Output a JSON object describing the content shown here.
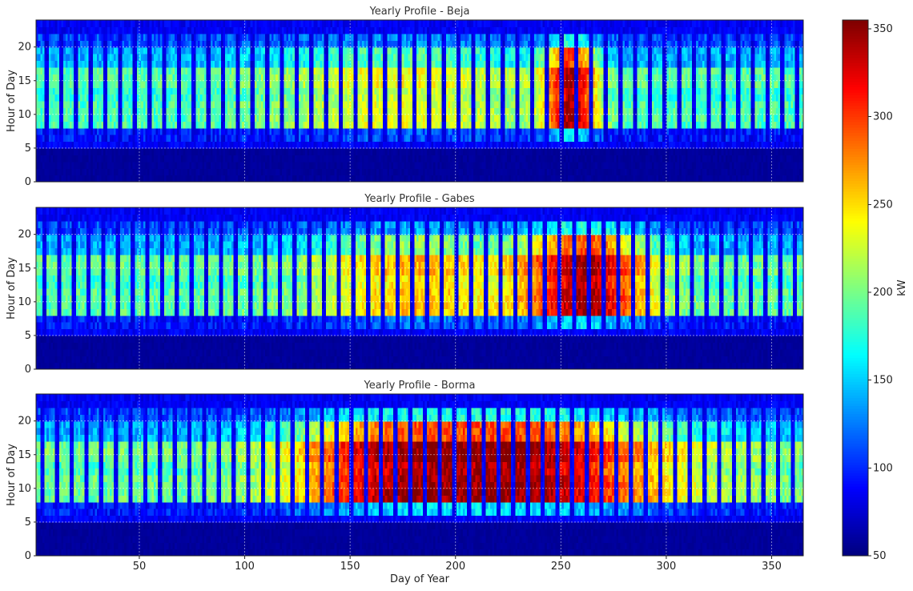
{
  "chart_data": {
    "type": "heatmap",
    "colormap": "jet",
    "colorbar": {
      "label": "kW",
      "range": [
        50,
        355
      ],
      "ticks": [
        50,
        100,
        150,
        200,
        250,
        300,
        350
      ]
    },
    "x": {
      "label": "Day of Year",
      "range": [
        1,
        365
      ],
      "ticks": [
        50,
        100,
        150,
        200,
        250,
        300,
        350
      ]
    },
    "y": {
      "label": "Hour of Day",
      "range": [
        0,
        24
      ],
      "ticks": [
        0,
        5,
        10,
        15,
        20
      ]
    },
    "grid": true,
    "panels": [
      {
        "title": "Yearly Profile - Beja",
        "weekday_profile": {
          "night_kW": 55,
          "early_kW": 95,
          "morning_kW": 185,
          "midday_kW": 175,
          "afternoon_kW": 190,
          "evening_kW": 110,
          "workday_start_hour": 6,
          "workday_end_hour": 21
        },
        "weekend_kW": 70,
        "seasonal_peak": {
          "center_day": 255,
          "width_days": 12,
          "amplitude_kW": 150
        },
        "secondary_peak": {
          "center_day": 175,
          "width_days": 60,
          "amplitude_kW": 50
        }
      },
      {
        "title": "Yearly Profile - Gabes",
        "weekday_profile": {
          "night_kW": 55,
          "early_kW": 95,
          "morning_kW": 190,
          "midday_kW": 180,
          "afternoon_kW": 195,
          "evening_kW": 110,
          "workday_start_hour": 6,
          "workday_end_hour": 21
        },
        "weekend_kW": 72,
        "seasonal_peak": {
          "center_day": 262,
          "width_days": 30,
          "amplitude_kW": 150
        },
        "secondary_peak": {
          "center_day": 180,
          "width_days": 45,
          "amplitude_kW": 70
        }
      },
      {
        "title": "Yearly Profile - Borma",
        "weekday_profile": {
          "night_kW": 55,
          "early_kW": 95,
          "morning_kW": 195,
          "midday_kW": 185,
          "afternoon_kW": 200,
          "evening_kW": 110,
          "workday_start_hour": 6,
          "workday_end_hour": 21
        },
        "weekend_kW": 75,
        "seasonal_peak": {
          "center_day": 230,
          "width_days": 70,
          "amplitude_kW": 150
        },
        "secondary_peak": {
          "center_day": 160,
          "width_days": 40,
          "amplitude_kW": 80
        }
      }
    ]
  }
}
